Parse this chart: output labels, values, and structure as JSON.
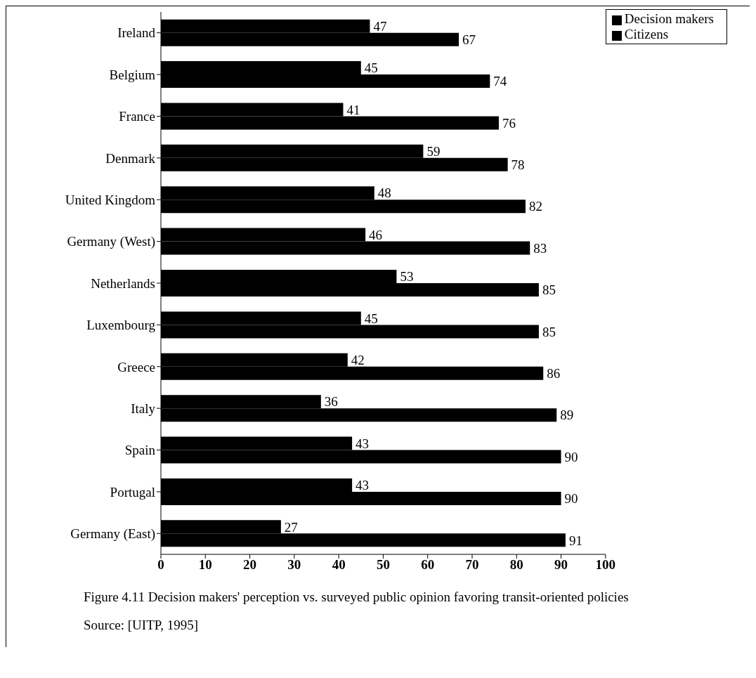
{
  "chart_data": {
    "type": "bar",
    "orientation": "horizontal",
    "title": "Figure 4.11  Decision makers' perception vs. surveyed public opinion favoring transit-oriented policies",
    "annotations": [
      "Source: [UITP, 1995]"
    ],
    "categories": [
      "Ireland",
      "Belgium",
      "France",
      "Denmark",
      "United Kingdom",
      "Germany (West)",
      "Netherlands",
      "Luxembourg",
      "Greece",
      "Italy",
      "Spain",
      "Portugal",
      "Germany (East)"
    ],
    "series": [
      {
        "name": "Decision makers",
        "color": "#000000",
        "values": [
          47,
          45,
          41,
          59,
          48,
          46,
          53,
          45,
          42,
          36,
          43,
          43,
          27
        ]
      },
      {
        "name": "Citizens",
        "color": "#000000",
        "values": [
          67,
          74,
          76,
          78,
          82,
          83,
          85,
          85,
          86,
          89,
          90,
          90,
          91
        ]
      }
    ],
    "xlim": [
      0,
      100
    ],
    "xticks": [
      0,
      10,
      20,
      30,
      40,
      50,
      60,
      70,
      80,
      90,
      100
    ],
    "data_labels": true,
    "legend": "top right",
    "grid": false
  }
}
